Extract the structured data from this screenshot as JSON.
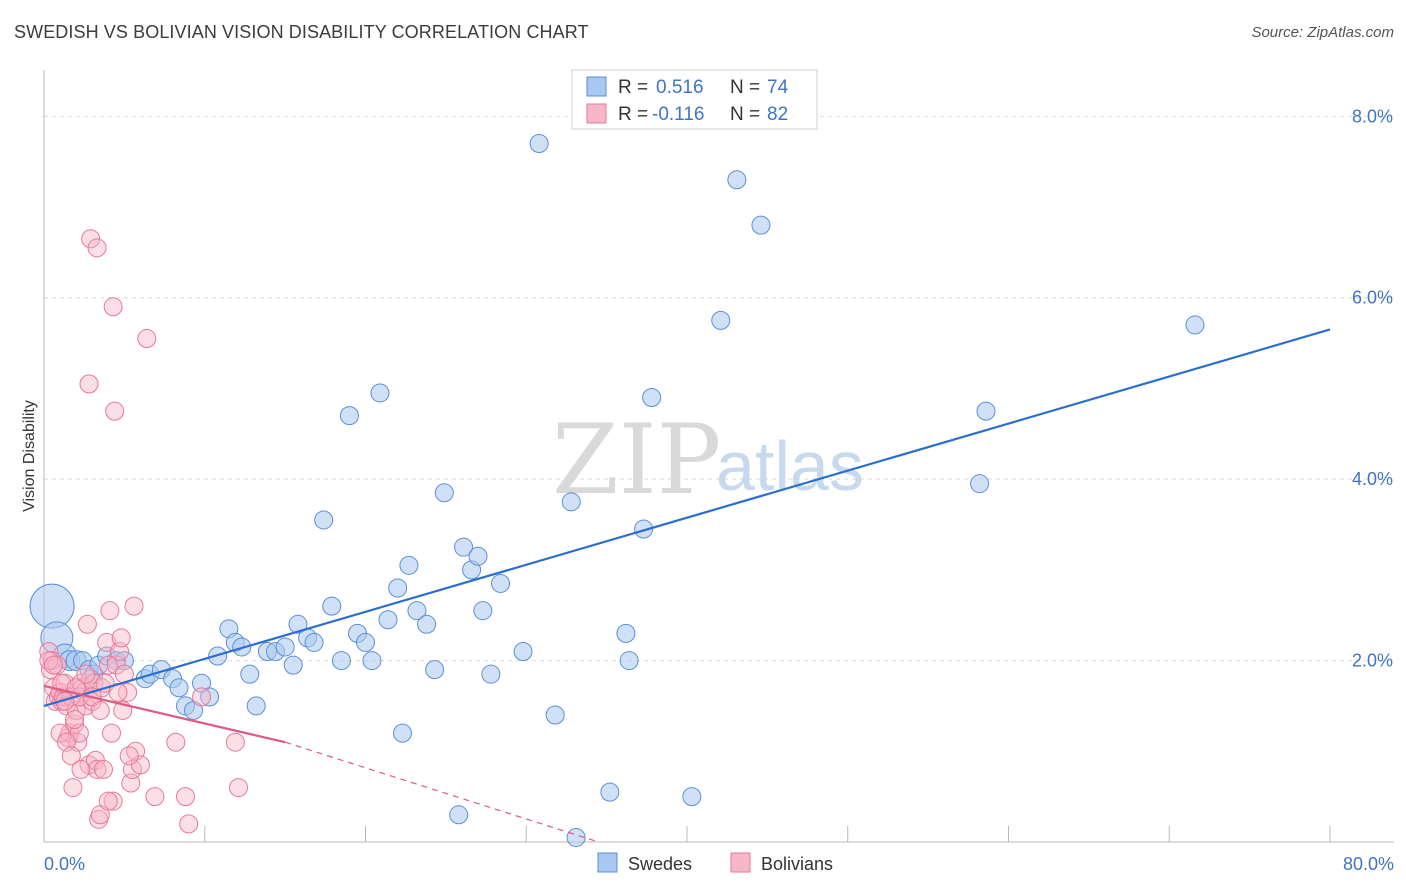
{
  "header": {
    "title": "SWEDISH VS BOLIVIAN VISION DISABILITY CORRELATION CHART",
    "source": "Source: ZipAtlas.com"
  },
  "watermark": {
    "zip": "ZIP",
    "atlas": "atlas"
  },
  "legend": {
    "rows": [
      {
        "r_label": "R =",
        "r_value": "0.516",
        "n_label": "N =",
        "n_value": "74",
        "color": "#a9c8f0"
      },
      {
        "r_label": "R =",
        "r_value": "-0.116",
        "n_label": "N =",
        "n_value": "82",
        "color": "#f6b6c8"
      }
    ]
  },
  "bottom_legend": {
    "swedes": "Swedes",
    "bolivians": "Bolivians"
  },
  "colors": {
    "swedes_fill": "#a9c8f0",
    "swedes_stroke": "#5b8fd6",
    "swedes_line": "#2a6fd0",
    "bolivians_fill": "#f6b6c8",
    "bolivians_stroke": "#e7799a",
    "bolivians_line": "#e05a86",
    "tick": "#3f74c4",
    "grid": "#d9d9d9"
  },
  "chart_data": {
    "type": "scatter",
    "title": "SWEDISH VS BOLIVIAN VISION DISABILITY CORRELATION CHART",
    "xlabel": "",
    "ylabel": "Vision Disability",
    "xlim": [
      0,
      80
    ],
    "ylim": [
      0,
      8.4
    ],
    "x_tick_labels": [
      "0.0%",
      "80.0%"
    ],
    "y_ticks": [
      2,
      4,
      6,
      8
    ],
    "y_tick_labels": [
      "2.0%",
      "4.0%",
      "6.0%",
      "8.0%"
    ],
    "grid": true,
    "legend_position": "top-center",
    "series": [
      {
        "name": "Swedes",
        "r": 0.516,
        "n": 74,
        "trend": {
          "x": [
            0,
            80
          ],
          "y": [
            1.5,
            5.65
          ],
          "style": "solid"
        },
        "points": [
          [
            0.5,
            2.6,
            22
          ],
          [
            0.8,
            2.25,
            16
          ],
          [
            1.3,
            2.05,
            12
          ],
          [
            1.6,
            2.0,
            10
          ],
          [
            2.0,
            2.0,
            10
          ],
          [
            2.4,
            2.0,
            9
          ],
          [
            2.8,
            1.9,
            9
          ],
          [
            3.1,
            1.85,
            9
          ],
          [
            3.4,
            1.95,
            9
          ],
          [
            3.9,
            2.05,
            9
          ],
          [
            4.5,
            2.0,
            9
          ],
          [
            5.0,
            2.0,
            9
          ],
          [
            6.3,
            1.8,
            9
          ],
          [
            6.6,
            1.85,
            9
          ],
          [
            7.3,
            1.9,
            9
          ],
          [
            8.0,
            1.8,
            9
          ],
          [
            8.4,
            1.7,
            9
          ],
          [
            8.8,
            1.5,
            9
          ],
          [
            9.3,
            1.45,
            9
          ],
          [
            9.8,
            1.75,
            9
          ],
          [
            10.3,
            1.6,
            9
          ],
          [
            10.8,
            2.05,
            9
          ],
          [
            11.5,
            2.35,
            9
          ],
          [
            11.9,
            2.2,
            9
          ],
          [
            12.3,
            2.15,
            9
          ],
          [
            12.8,
            1.85,
            9
          ],
          [
            13.2,
            1.5,
            9
          ],
          [
            13.9,
            2.1,
            9
          ],
          [
            14.4,
            2.1,
            9
          ],
          [
            15.0,
            2.15,
            9
          ],
          [
            15.5,
            1.95,
            9
          ],
          [
            15.8,
            2.4,
            9
          ],
          [
            16.4,
            2.25,
            9
          ],
          [
            16.8,
            2.2,
            9
          ],
          [
            17.4,
            3.55,
            9
          ],
          [
            17.9,
            2.6,
            9
          ],
          [
            18.5,
            2.0,
            9
          ],
          [
            19.0,
            4.7,
            9
          ],
          [
            19.5,
            2.3,
            9
          ],
          [
            20.0,
            2.2,
            9
          ],
          [
            20.4,
            2.0,
            9
          ],
          [
            20.9,
            4.95,
            9
          ],
          [
            21.4,
            2.45,
            9
          ],
          [
            22.0,
            2.8,
            9
          ],
          [
            22.3,
            1.2,
            9
          ],
          [
            22.7,
            3.05,
            9
          ],
          [
            23.2,
            2.55,
            9
          ],
          [
            23.8,
            2.4,
            9
          ],
          [
            24.3,
            1.9,
            9
          ],
          [
            24.9,
            3.85,
            9
          ],
          [
            26.1,
            3.25,
            9
          ],
          [
            26.6,
            3.0,
            9
          ],
          [
            27.0,
            3.15,
            9
          ],
          [
            27.3,
            2.55,
            9
          ],
          [
            27.8,
            1.85,
            9
          ],
          [
            28.4,
            2.85,
            9
          ],
          [
            29.8,
            2.1,
            9
          ],
          [
            30.8,
            7.7,
            9
          ],
          [
            31.8,
            1.4,
            9
          ],
          [
            32.8,
            3.75,
            9
          ],
          [
            35.2,
            0.55,
            9
          ],
          [
            36.2,
            2.3,
            9
          ],
          [
            36.4,
            2.0,
            9
          ],
          [
            37.3,
            3.45,
            9
          ],
          [
            37.8,
            4.9,
            9
          ],
          [
            40.3,
            0.5,
            9
          ],
          [
            42.1,
            5.75,
            9
          ],
          [
            43.1,
            7.3,
            9
          ],
          [
            44.6,
            6.8,
            9
          ],
          [
            58.2,
            3.95,
            9
          ],
          [
            58.6,
            4.75,
            9
          ],
          [
            71.6,
            5.7,
            9
          ],
          [
            33.1,
            0.05,
            9
          ],
          [
            25.8,
            0.3,
            9
          ]
        ]
      },
      {
        "name": "Bolivians",
        "r": -0.116,
        "n": 82,
        "trend": {
          "x": [
            0,
            15,
            34.5
          ],
          "y": [
            1.72,
            1.1,
            0.0
          ],
          "style": "solid_then_dashed"
        },
        "points": [
          [
            0.3,
            2.1
          ],
          [
            0.4,
            1.9
          ],
          [
            0.5,
            2.0
          ],
          [
            0.6,
            1.7
          ],
          [
            0.7,
            1.55
          ],
          [
            0.8,
            1.95
          ],
          [
            0.9,
            1.6
          ],
          [
            1.0,
            1.65
          ],
          [
            1.1,
            1.55
          ],
          [
            1.2,
            1.6
          ],
          [
            1.3,
            1.75
          ],
          [
            1.4,
            1.5
          ],
          [
            1.5,
            1.15
          ],
          [
            1.6,
            1.2
          ],
          [
            1.7,
            1.6
          ],
          [
            1.8,
            0.6
          ],
          [
            1.9,
            1.3
          ],
          [
            2.0,
            1.45
          ],
          [
            2.1,
            1.1
          ],
          [
            2.2,
            1.2
          ],
          [
            2.3,
            1.75
          ],
          [
            2.4,
            1.7
          ],
          [
            2.5,
            1.65
          ],
          [
            2.6,
            1.5
          ],
          [
            2.7,
            2.4
          ],
          [
            2.8,
            0.85
          ],
          [
            2.9,
            1.8
          ],
          [
            3.0,
            1.55
          ],
          [
            3.1,
            1.75
          ],
          [
            3.2,
            0.9
          ],
          [
            3.3,
            0.8
          ],
          [
            3.4,
            0.25
          ],
          [
            3.5,
            0.3
          ],
          [
            3.6,
            1.7
          ],
          [
            3.7,
            0.8
          ],
          [
            3.8,
            1.75
          ],
          [
            3.9,
            2.2
          ],
          [
            4.0,
            1.95
          ],
          [
            4.1,
            2.55
          ],
          [
            4.2,
            1.2
          ],
          [
            4.3,
            0.45
          ],
          [
            4.5,
            1.95
          ],
          [
            4.7,
            2.1
          ],
          [
            4.8,
            2.25
          ],
          [
            4.9,
            1.45
          ],
          [
            5.0,
            1.85
          ],
          [
            5.2,
            1.65
          ],
          [
            5.4,
            0.65
          ],
          [
            5.5,
            0.8
          ],
          [
            5.6,
            2.6
          ],
          [
            5.7,
            1.0
          ],
          [
            6.0,
            0.85
          ],
          [
            6.4,
            5.55
          ],
          [
            6.9,
            0.5
          ],
          [
            8.2,
            1.1
          ],
          [
            8.8,
            0.5
          ],
          [
            9.0,
            0.2
          ],
          [
            9.8,
            1.6
          ],
          [
            11.9,
            1.1
          ],
          [
            12.1,
            0.6
          ],
          [
            2.9,
            6.65
          ],
          [
            3.3,
            6.55
          ],
          [
            4.3,
            5.9
          ],
          [
            2.8,
            5.05
          ],
          [
            4.4,
            4.75
          ],
          [
            1.0,
            1.2
          ],
          [
            1.4,
            1.1
          ],
          [
            1.9,
            1.35
          ],
          [
            2.2,
            1.6
          ],
          [
            0.3,
            2.0
          ],
          [
            0.6,
            1.95
          ],
          [
            1.1,
            1.75
          ],
          [
            1.3,
            1.55
          ],
          [
            2.0,
            1.7
          ],
          [
            2.6,
            1.85
          ],
          [
            3.0,
            1.6
          ],
          [
            3.5,
            1.45
          ],
          [
            4.0,
            0.45
          ],
          [
            4.6,
            1.65
          ],
          [
            5.3,
            0.95
          ],
          [
            1.7,
            0.95
          ],
          [
            2.3,
            0.8
          ]
        ]
      }
    ]
  }
}
